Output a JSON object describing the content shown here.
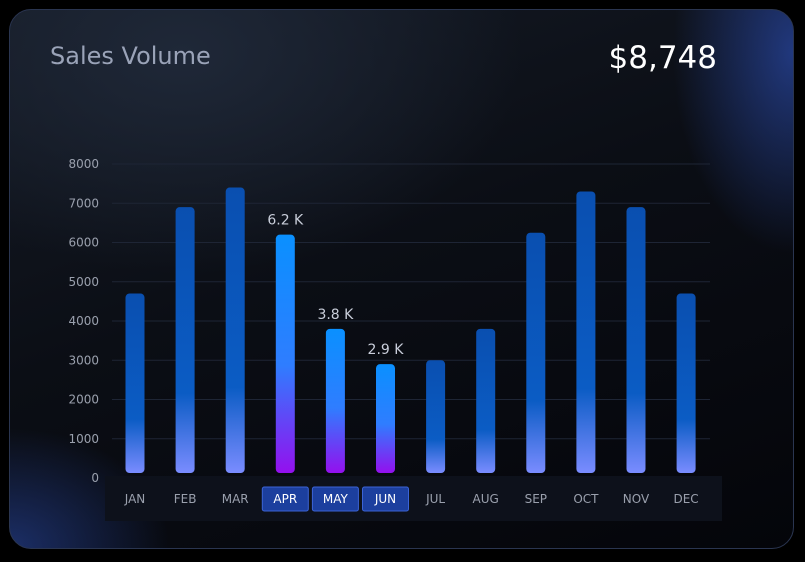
{
  "header": {
    "title": "Sales Volume",
    "total": "$8,748"
  },
  "colors": {
    "bar_top": "#0a4fb0",
    "bar_mid": "#0b5cc4",
    "bar_bottom": "#7a8cff",
    "highlight_top": "#0a90ff",
    "highlight_mid": "#2f7dff",
    "highlight_bottom": "#9410ee",
    "gridline": "#1e2535",
    "axis_text": "#9aa0ad",
    "highlight_label_bg": "#1c3f9e"
  },
  "chart_data": {
    "type": "bar",
    "categories": [
      "JAN",
      "FEB",
      "MAR",
      "APR",
      "MAY",
      "JUN",
      "JUL",
      "AUG",
      "SEP",
      "OCT",
      "NOV",
      "DEC"
    ],
    "values": [
      4700,
      6900,
      7400,
      6200,
      3800,
      2900,
      3000,
      3800,
      6250,
      7300,
      6900,
      4700
    ],
    "highlighted": [
      "APR",
      "MAY",
      "JUN"
    ],
    "data_labels": [
      {
        "category": "APR",
        "text": "6.2 K"
      },
      {
        "category": "MAY",
        "text": "3.8 K"
      },
      {
        "category": "JUN",
        "text": "2.9 K"
      }
    ],
    "y_ticks": [
      0,
      1000,
      2000,
      3000,
      4000,
      5000,
      6000,
      7000,
      8000
    ],
    "ylim": [
      0,
      8000
    ],
    "grid": true,
    "xlabel": "",
    "ylabel": ""
  }
}
